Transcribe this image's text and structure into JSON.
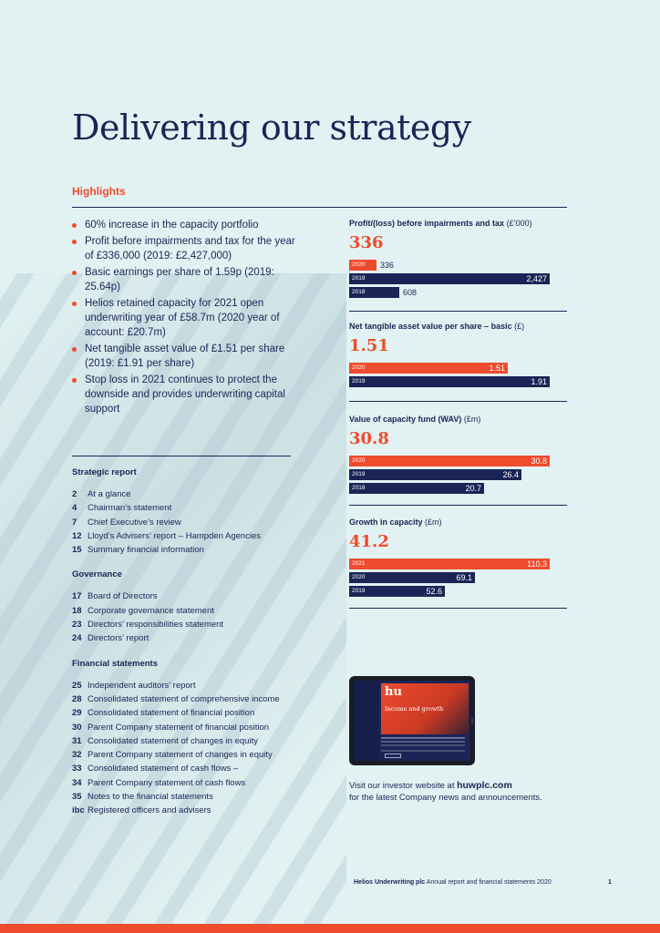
{
  "title": "Delivering our strategy",
  "highlights": {
    "heading": "Highlights",
    "items": [
      "60% increase in the capacity portfolio",
      "Profit before impairments and tax for the year of £336,000 (2019: £2,427,000)",
      "Basic earnings per share of 1.59p (2019: 25.64p)",
      "Helios retained capacity for 2021 open underwriting year of £58.7m (2020 year of account: £20.7m)",
      "Net tangible asset value of £1.51 per share (2019: £1.91 per share)",
      "Stop loss in 2021 continues to protect the downside and provides underwriting capital support"
    ]
  },
  "contents": [
    {
      "heading": "Strategic report",
      "entries": [
        {
          "page": "2",
          "label": "At a glance"
        },
        {
          "page": "4",
          "label": "Chairman’s statement"
        },
        {
          "page": "7",
          "label": "Chief Executive’s review"
        },
        {
          "page": "12",
          "label": "Lloyd’s Advisers’ report – Hampden Agencies"
        },
        {
          "page": "15",
          "label": "Summary financial information"
        }
      ]
    },
    {
      "heading": "Governance",
      "entries": [
        {
          "page": "17",
          "label": "Board of Directors"
        },
        {
          "page": "18",
          "label": "Corporate governance statement"
        },
        {
          "page": "23",
          "label": "Directors’ responsibilities statement"
        },
        {
          "page": "24",
          "label": "Directors’ report"
        }
      ]
    },
    {
      "heading": "Financial statements",
      "entries": [
        {
          "page": "25",
          "label": "Independent auditors’ report"
        },
        {
          "page": "28",
          "label": "Consolidated statement of comprehensive income"
        },
        {
          "page": "29",
          "label": "Consolidated statement of financial position"
        },
        {
          "page": "30",
          "label": "Parent Company statement of financial position"
        },
        {
          "page": "31",
          "label": "Consolidated statement of changes in equity"
        },
        {
          "page": "32",
          "label": "Parent Company statement of changes in equity"
        },
        {
          "page": "33",
          "label": "Consolidated statement of cash flows –"
        },
        {
          "page": "34",
          "label": "Parent Company statement of cash flows"
        },
        {
          "page": "35",
          "label": "Notes to the financial statements"
        },
        {
          "page": "ibc",
          "label": "Registered officers and advisers"
        }
      ]
    }
  ],
  "chart_data": [
    {
      "type": "bar",
      "title": "Profit/(loss) before impairments and tax",
      "unit": "(£’000)",
      "headline": "336",
      "categories": [
        "2020",
        "2019",
        "2018"
      ],
      "values": [
        336,
        2427,
        608
      ],
      "labels": [
        "336",
        "2,427",
        "608"
      ],
      "max": 2427
    },
    {
      "type": "bar",
      "title": "Net tangible asset value per share – basic",
      "unit": "(£)",
      "headline": "1.51",
      "categories": [
        "2020",
        "2019"
      ],
      "values": [
        1.51,
        1.91
      ],
      "labels": [
        "1.51",
        "1.91"
      ],
      "max": 1.91
    },
    {
      "type": "bar",
      "title": "Value of capacity fund (WAV)",
      "unit": "(£m)",
      "headline": "30.8",
      "categories": [
        "2020",
        "2019",
        "2018"
      ],
      "values": [
        30.8,
        26.4,
        20.7
      ],
      "labels": [
        "30.8",
        "26.4",
        "20.7"
      ],
      "max": 30.8
    },
    {
      "type": "bar",
      "title": "Growth in capacity",
      "unit": "(£m)",
      "headline": "41.2",
      "categories": [
        "2021",
        "2020",
        "2019"
      ],
      "values": [
        110.3,
        69.1,
        52.6
      ],
      "labels": [
        "110.3",
        "69.1",
        "52.6"
      ],
      "max": 110.3
    }
  ],
  "tablet": {
    "logo": "hu",
    "tagline": "Income and growth"
  },
  "visit": {
    "prefix": "Visit our investor website at",
    "url": "huwplc.com",
    "line2": "for the latest Company news and announcements."
  },
  "footer": {
    "company": "Helios Underwriting plc",
    "doc": "Annual report and financial statements 2020",
    "page": "1"
  },
  "colors": {
    "navy": "#1b2456",
    "orange": "#ef4b2d",
    "background": "#e2f2f2"
  }
}
